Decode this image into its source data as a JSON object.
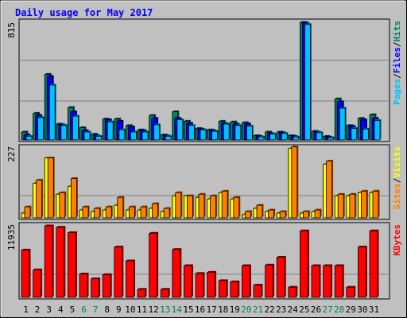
{
  "title": "Daily usage for May 2017",
  "colors": {
    "hits": "#00805c",
    "files": "#0000ff",
    "pages": "#00c0ff",
    "visits": "#ff8000",
    "sites": "#ffff00",
    "kbytes": "#ff0000",
    "title": "#0000ff",
    "weekend": "#00805c",
    "weekday": "#000000",
    "panel": "#c0c0c0"
  },
  "chart_data": [
    {
      "type": "bar",
      "panel": "hits-files-pages",
      "categories": [
        "1",
        "2",
        "3",
        "4",
        "5",
        "6",
        "7",
        "8",
        "9",
        "10",
        "11",
        "12",
        "13",
        "14",
        "15",
        "16",
        "17",
        "18",
        "19",
        "20",
        "21",
        "22",
        "23",
        "24",
        "25",
        "26",
        "27",
        "28",
        "29",
        "30",
        "31"
      ],
      "ymax_label": "815",
      "ylim": [
        0,
        815
      ],
      "legend": [
        "Pages",
        "/",
        "Files",
        "/",
        "Hits"
      ],
      "series": [
        {
          "name": "Hits",
          "values": [
            55,
            185,
            455,
            110,
            225,
            85,
            40,
            145,
            145,
            100,
            70,
            170,
            35,
            195,
            130,
            80,
            70,
            130,
            125,
            120,
            30,
            55,
            55,
            30,
            815,
            60,
            25,
            285,
            100,
            150,
            175
          ]
        },
        {
          "name": "Files",
          "values": [
            35,
            170,
            440,
            105,
            195,
            65,
            30,
            140,
            130,
            90,
            65,
            150,
            30,
            150,
            115,
            75,
            65,
            115,
            110,
            110,
            25,
            45,
            50,
            25,
            810,
            55,
            20,
            265,
            95,
            140,
            150
          ]
        },
        {
          "name": "Pages",
          "values": [
            25,
            155,
            380,
            100,
            165,
            55,
            25,
            125,
            70,
            55,
            55,
            105,
            25,
            140,
            100,
            70,
            60,
            110,
            100,
            95,
            20,
            40,
            45,
            20,
            800,
            50,
            15,
            220,
            80,
            75,
            135
          ]
        }
      ]
    },
    {
      "type": "bar",
      "panel": "visits-sites",
      "categories": [
        "1",
        "2",
        "3",
        "4",
        "5",
        "6",
        "7",
        "8",
        "9",
        "10",
        "11",
        "12",
        "13",
        "14",
        "15",
        "16",
        "17",
        "18",
        "19",
        "20",
        "21",
        "22",
        "23",
        "24",
        "25",
        "26",
        "27",
        "28",
        "29",
        "30",
        "31"
      ],
      "ymax_label": "227",
      "ylim": [
        0,
        227
      ],
      "legend": [
        "Sites",
        "/",
        "Visits"
      ],
      "series": [
        {
          "name": "Visits",
          "values": [
            35,
            120,
            190,
            80,
            125,
            35,
            30,
            35,
            65,
            35,
            35,
            45,
            30,
            80,
            70,
            75,
            70,
            85,
            65,
            20,
            40,
            25,
            20,
            225,
            20,
            25,
            180,
            75,
            75,
            85,
            85
          ]
        },
        {
          "name": "Sites",
          "values": [
            15,
            110,
            190,
            75,
            100,
            25,
            20,
            25,
            40,
            25,
            25,
            30,
            20,
            70,
            70,
            65,
            60,
            80,
            60,
            10,
            30,
            20,
            15,
            220,
            15,
            20,
            170,
            70,
            70,
            80,
            80
          ]
        }
      ]
    },
    {
      "type": "bar",
      "panel": "kbytes",
      "categories": [
        "1",
        "2",
        "3",
        "4",
        "5",
        "6",
        "7",
        "8",
        "9",
        "10",
        "11",
        "12",
        "13",
        "14",
        "15",
        "16",
        "17",
        "18",
        "19",
        "20",
        "21",
        "22",
        "23",
        "24",
        "25",
        "26",
        "27",
        "28",
        "29",
        "30",
        "31"
      ],
      "ymax_label": "11935",
      "ylim": [
        0,
        11935
      ],
      "legend": [
        "KBytes"
      ],
      "series": [
        {
          "name": "KBytes",
          "values": [
            7900,
            4600,
            11935,
            11700,
            10800,
            3900,
            3100,
            3800,
            8400,
            6100,
            1350,
            10700,
            1350,
            8000,
            5300,
            4000,
            4200,
            2800,
            2600,
            5300,
            2050,
            5400,
            6700,
            1700,
            11100,
            5300,
            5300,
            5300,
            1700,
            8400,
            11100
          ]
        }
      ]
    }
  ]
}
